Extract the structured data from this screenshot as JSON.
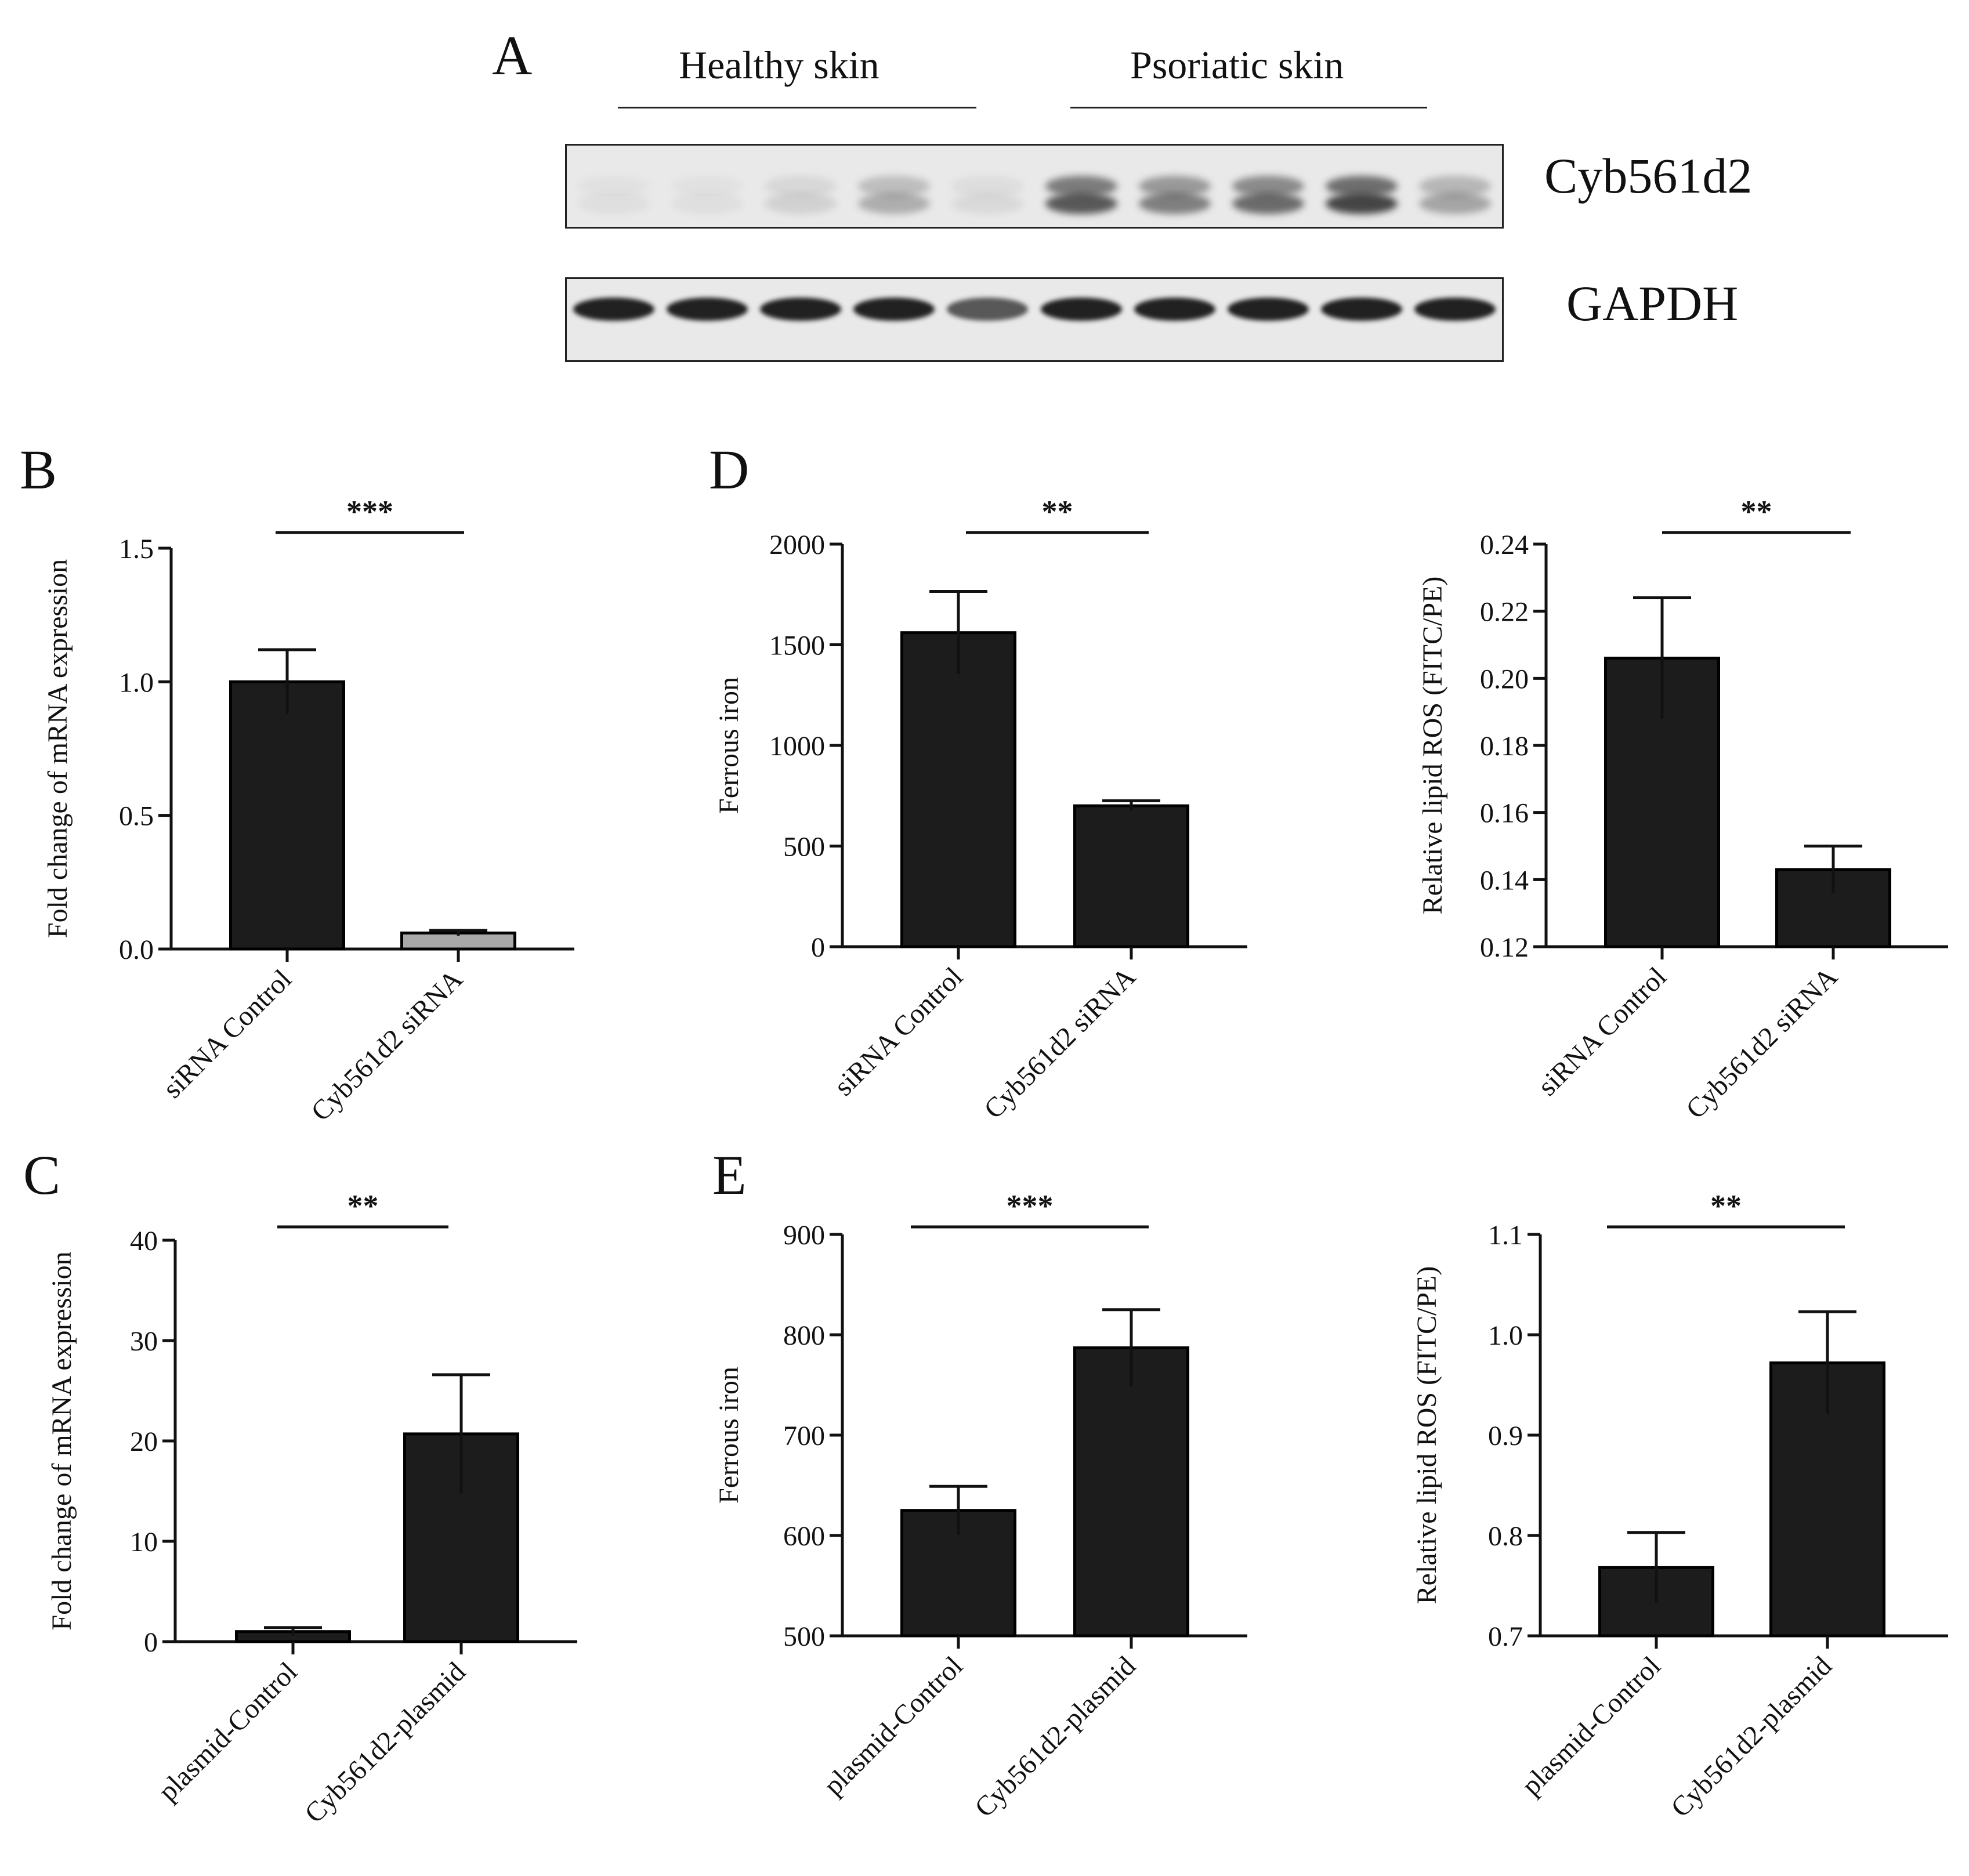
{
  "panels": {
    "a": "A",
    "b": "B",
    "c": "C",
    "d": "D",
    "e": "E"
  },
  "blot": {
    "group_labels": [
      "Healthy skin",
      "Psoriatic skin"
    ],
    "row_labels": [
      "Cyb561d2",
      "GAPDH"
    ]
  },
  "colors": {
    "bar": "#1c1c1c",
    "bar_light": "#a9a9a9",
    "axis": "#111111"
  },
  "chart_data": [
    {
      "panel": "B",
      "type": "bar",
      "categories": [
        "siRNA Control",
        "Cyb561d2 siRNA"
      ],
      "values": [
        1.0,
        0.06
      ],
      "errors": [
        0.12,
        0.01
      ],
      "ylabel": "Fold change of mRNA expression",
      "ylim": [
        0,
        1.5
      ],
      "yticks": [
        "0.0",
        "0.5",
        "1.0",
        "1.5"
      ],
      "significance": "***",
      "bar_colors": [
        "#1c1c1c",
        "#a9a9a9"
      ]
    },
    {
      "panel": "D",
      "type": "bar",
      "categories": [
        "siRNA Control",
        "Cyb561d2 siRNA"
      ],
      "values": [
        1560,
        700
      ],
      "errors": [
        205,
        25
      ],
      "ylabel": "Ferrous iron",
      "ylim": [
        0,
        2000
      ],
      "yticks": [
        "0",
        "500",
        "1000",
        "1500",
        "2000"
      ],
      "significance": "**"
    },
    {
      "panel": "D",
      "type": "bar",
      "categories": [
        "siRNA Control",
        "Cyb561d2 siRNA"
      ],
      "values": [
        0.206,
        0.143
      ],
      "errors": [
        0.018,
        0.007
      ],
      "ylabel": "Relative lipid ROS (FITC/PE)",
      "ylim": [
        0.12,
        0.24
      ],
      "yticks": [
        "0.12",
        "0.14",
        "0.16",
        "0.18",
        "0.20",
        "0.22",
        "0.24"
      ],
      "significance": "**"
    },
    {
      "panel": "C",
      "type": "bar",
      "categories": [
        "plasmid-Control",
        "Cyb561d2-plasmid"
      ],
      "values": [
        1.0,
        20.7
      ],
      "errors": [
        0.4,
        5.9
      ],
      "ylabel": "Fold change of mRNA expression",
      "ylim": [
        0,
        40
      ],
      "yticks": [
        "0",
        "10",
        "20",
        "30",
        "40"
      ],
      "significance": "**"
    },
    {
      "panel": "E",
      "type": "bar",
      "categories": [
        "plasmid-Control",
        "Cyb561d2-plasmid"
      ],
      "values": [
        625,
        787
      ],
      "errors": [
        24,
        38
      ],
      "ylabel": "Ferrous iron",
      "ylim": [
        500,
        900
      ],
      "yticks": [
        "500",
        "600",
        "700",
        "800",
        "900"
      ],
      "significance": "***"
    },
    {
      "panel": "E",
      "type": "bar",
      "categories": [
        "plasmid-Control",
        "Cyb561d2-plasmid"
      ],
      "values": [
        0.768,
        0.972
      ],
      "errors": [
        0.035,
        0.051
      ],
      "ylabel": "Relative lipid ROS (FITC/PE)",
      "ylim": [
        0.7,
        1.1
      ],
      "yticks": [
        "0.7",
        "0.8",
        "0.9",
        "1.0",
        "1.1"
      ],
      "significance": "**"
    }
  ]
}
